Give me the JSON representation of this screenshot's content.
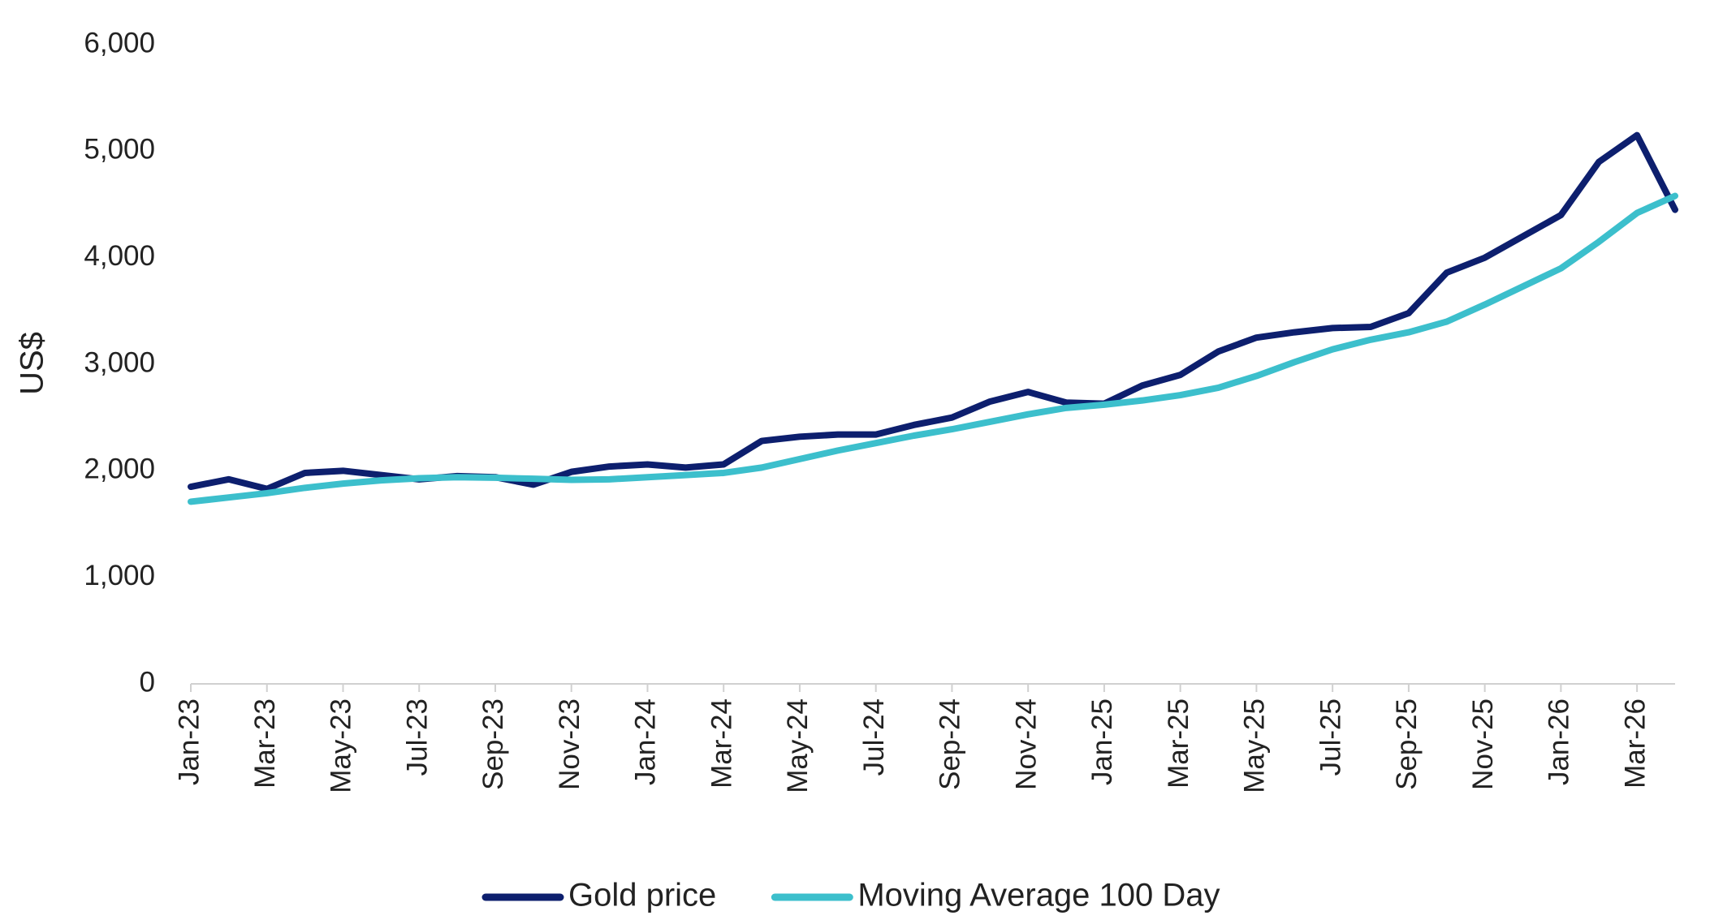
{
  "chart_data": {
    "type": "line",
    "ylabel": "US$",
    "categories": [
      "Jan-23",
      null,
      "Mar-23",
      null,
      "May-23",
      null,
      "Jul-23",
      null,
      "Sep-23",
      null,
      "Nov-23",
      null,
      "Jan-24",
      null,
      "Mar-24",
      null,
      "May-24",
      null,
      "Jul-24",
      null,
      "Sep-24",
      null,
      "Nov-24",
      null,
      "Jan-25",
      null,
      "Mar-25",
      null,
      "May-25",
      null,
      "Jul-25",
      null,
      "Sep-25",
      null,
      "Nov-25",
      null,
      "Jan-26",
      null,
      "Mar-26",
      null
    ],
    "series": [
      {
        "name": "Gold price",
        "color": "#0d1f6e",
        "values": [
          1850,
          1920,
          1830,
          1980,
          2000,
          1960,
          1920,
          1950,
          1940,
          1870,
          1990,
          2040,
          2060,
          2030,
          2060,
          2280,
          2320,
          2340,
          2340,
          2430,
          2500,
          2650,
          2740,
          2640,
          2630,
          2800,
          2900,
          3120,
          3250,
          3300,
          3340,
          3350,
          3480,
          3860,
          4000,
          4200,
          4400,
          4900,
          5150,
          4450
        ]
      },
      {
        "name": "Moving Average 100 Day",
        "color": "#3cbfcc",
        "values": [
          1710,
          1750,
          1790,
          1840,
          1880,
          1910,
          1930,
          1940,
          1935,
          1925,
          1915,
          1920,
          1940,
          1960,
          1980,
          2030,
          2110,
          2190,
          2260,
          2330,
          2390,
          2460,
          2530,
          2590,
          2620,
          2660,
          2710,
          2780,
          2890,
          3020,
          3140,
          3230,
          3300,
          3400,
          3560,
          3730,
          3900,
          4150,
          4420,
          4580
        ]
      }
    ],
    "ylim": [
      0,
      6000
    ],
    "yticks": [
      0,
      {
        "value": 1000,
        "label": "1,000"
      },
      {
        "value": 2000,
        "label": "2,000"
      },
      {
        "value": 3000,
        "label": "3,000"
      },
      {
        "value": 4000,
        "label": "4,000"
      },
      {
        "value": 5000,
        "label": "5,000"
      },
      {
        "value": 6000,
        "label": "6,000"
      }
    ],
    "grid": false,
    "legend": "bottom"
  }
}
